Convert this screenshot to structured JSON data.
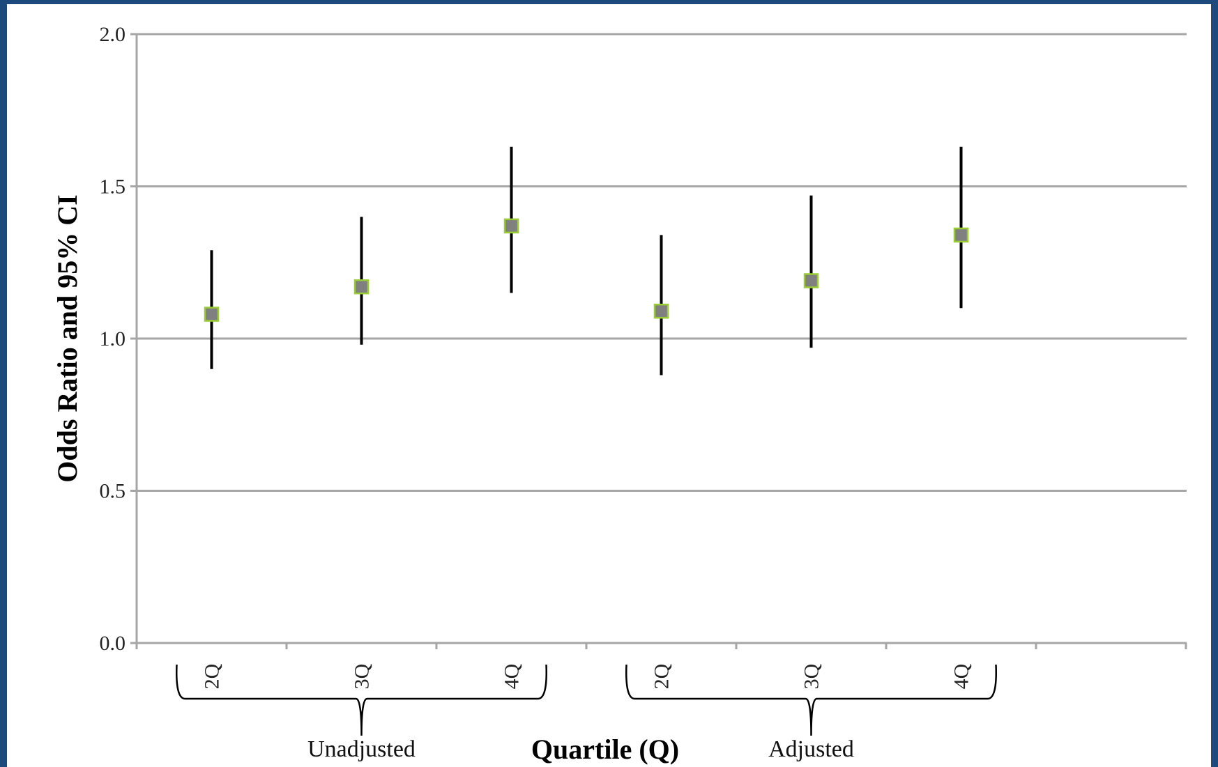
{
  "colors": {
    "border": "#1c4a7c",
    "gridline": "#a6a6a6",
    "marker_fill": "#808080",
    "marker_stroke": "#9acd32",
    "whisker": "#000000"
  },
  "chart_data": {
    "type": "scatter",
    "title": "",
    "xlabel": "Quartile (Q)",
    "ylabel": "Odds Ratio and 95% CI",
    "ylim": [
      0,
      2
    ],
    "yticks": [
      "0.0",
      "0.5",
      "1.0",
      "1.5",
      "2.0"
    ],
    "grid": true,
    "categories": [
      "2Q",
      "3Q",
      "4Q",
      "2Q",
      "3Q",
      "4Q"
    ],
    "groups": [
      {
        "label": "Unadjusted",
        "categories": [
          "2Q",
          "3Q",
          "4Q"
        ]
      },
      {
        "label": "Adjusted",
        "categories": [
          "2Q",
          "3Q",
          "4Q"
        ]
      }
    ],
    "points": [
      {
        "group": "Unadjusted",
        "category": "2Q",
        "or": 1.08,
        "ci_low": 0.9,
        "ci_high": 1.29
      },
      {
        "group": "Unadjusted",
        "category": "3Q",
        "or": 1.17,
        "ci_low": 0.98,
        "ci_high": 1.4
      },
      {
        "group": "Unadjusted",
        "category": "4Q",
        "or": 1.37,
        "ci_low": 1.15,
        "ci_high": 1.63
      },
      {
        "group": "Adjusted",
        "category": "2Q",
        "or": 1.09,
        "ci_low": 0.88,
        "ci_high": 1.34
      },
      {
        "group": "Adjusted",
        "category": "3Q",
        "or": 1.19,
        "ci_low": 0.97,
        "ci_high": 1.47
      },
      {
        "group": "Adjusted",
        "category": "4Q",
        "or": 1.34,
        "ci_low": 1.1,
        "ci_high": 1.63
      }
    ]
  }
}
